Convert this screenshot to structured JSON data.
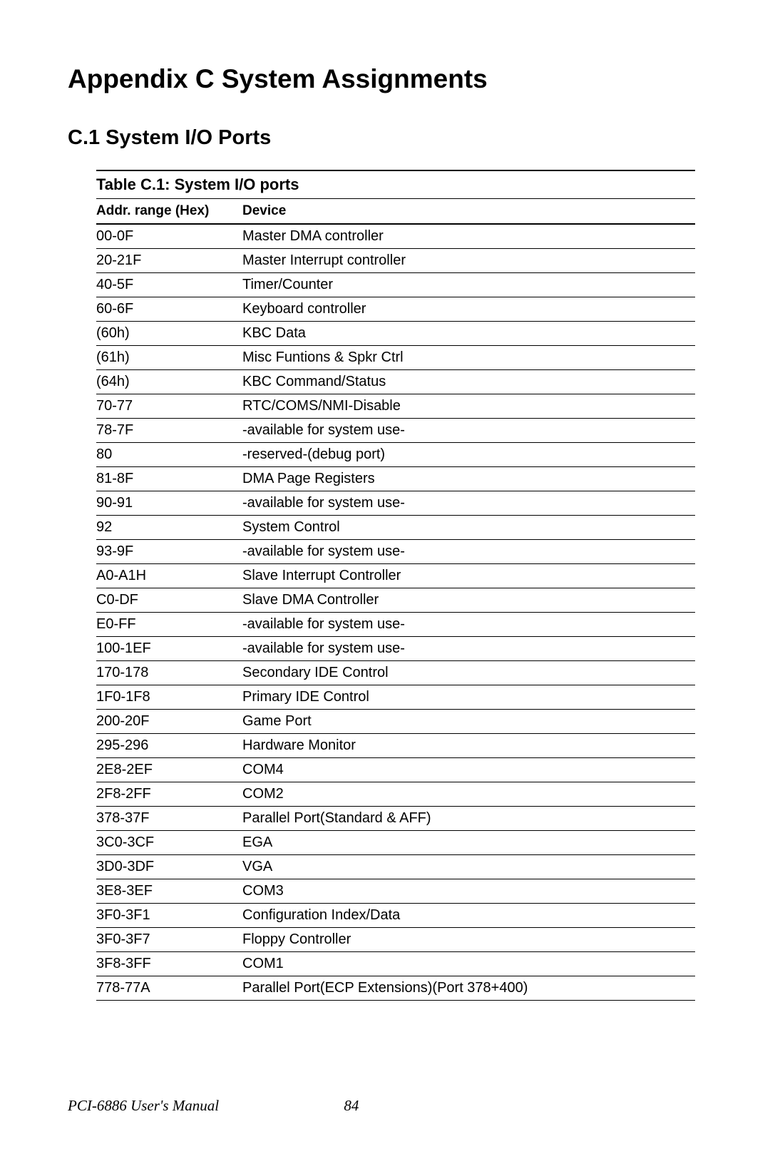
{
  "appendix_title": "Appendix C System Assignments",
  "section_title": "C.1 System I/O Ports",
  "table": {
    "title": "Table C.1: System I/O ports",
    "columns": {
      "addr": "Addr. range (Hex)",
      "device": "Device"
    },
    "rows": [
      {
        "addr": "00-0F",
        "device": "Master DMA controller"
      },
      {
        "addr": "20-21F",
        "device": "Master Interrupt controller"
      },
      {
        "addr": "40-5F",
        "device": "Timer/Counter"
      },
      {
        "addr": "60-6F",
        "device": "Keyboard controller"
      },
      {
        "addr": "(60h)",
        "device": "KBC Data"
      },
      {
        "addr": "(61h)",
        "device": "Misc Funtions & Spkr Ctrl"
      },
      {
        "addr": "(64h)",
        "device": "KBC Command/Status"
      },
      {
        "addr": "70-77",
        "device": "RTC/COMS/NMI-Disable"
      },
      {
        "addr": "78-7F",
        "device": "-available for system use-"
      },
      {
        "addr": "80",
        "device": "-reserved-(debug port)"
      },
      {
        "addr": "81-8F",
        "device": "DMA Page Registers"
      },
      {
        "addr": "90-91",
        "device": "-available for system use-"
      },
      {
        "addr": "92",
        "device": "System Control"
      },
      {
        "addr": "93-9F",
        "device": "-available for system use-"
      },
      {
        "addr": "A0-A1H",
        "device": "Slave Interrupt Controller"
      },
      {
        "addr": "C0-DF",
        "device": "Slave DMA Controller"
      },
      {
        "addr": "E0-FF",
        "device": "-available for system use-"
      },
      {
        "addr": "100-1EF",
        "device": "-available for system use-"
      },
      {
        "addr": "170-178",
        "device": "Secondary IDE Control"
      },
      {
        "addr": "1F0-1F8",
        "device": "Primary IDE Control"
      },
      {
        "addr": "200-20F",
        "device": "Game Port"
      },
      {
        "addr": "295-296",
        "device": "Hardware Monitor"
      },
      {
        "addr": "2E8-2EF",
        "device": "COM4"
      },
      {
        "addr": "2F8-2FF",
        "device": "COM2"
      },
      {
        "addr": "378-37F",
        "device": "Parallel Port(Standard & AFF)"
      },
      {
        "addr": "3C0-3CF",
        "device": "EGA"
      },
      {
        "addr": "3D0-3DF",
        "device": "VGA"
      },
      {
        "addr": "3E8-3EF",
        "device": "COM3"
      },
      {
        "addr": "3F0-3F1",
        "device": "Configuration Index/Data"
      },
      {
        "addr": "3F0-3F7",
        "device": "Floppy Controller"
      },
      {
        "addr": "3F8-3FF",
        "device": "COM1"
      },
      {
        "addr": "778-77A",
        "device": "Parallel Port(ECP Extensions)(Port 378+400)"
      }
    ]
  },
  "footer": {
    "manual": "PCI-6886 User's Manual",
    "page": "84"
  },
  "styles": {
    "background_color": "#ffffff",
    "text_color": "#000000",
    "border_color": "#000000",
    "title_fontsize": 37,
    "section_fontsize": 29,
    "table_title_fontsize": 22,
    "header_fontsize": 19,
    "row_fontsize": 20,
    "footer_fontsize": 21,
    "col_addr_width": 205
  }
}
